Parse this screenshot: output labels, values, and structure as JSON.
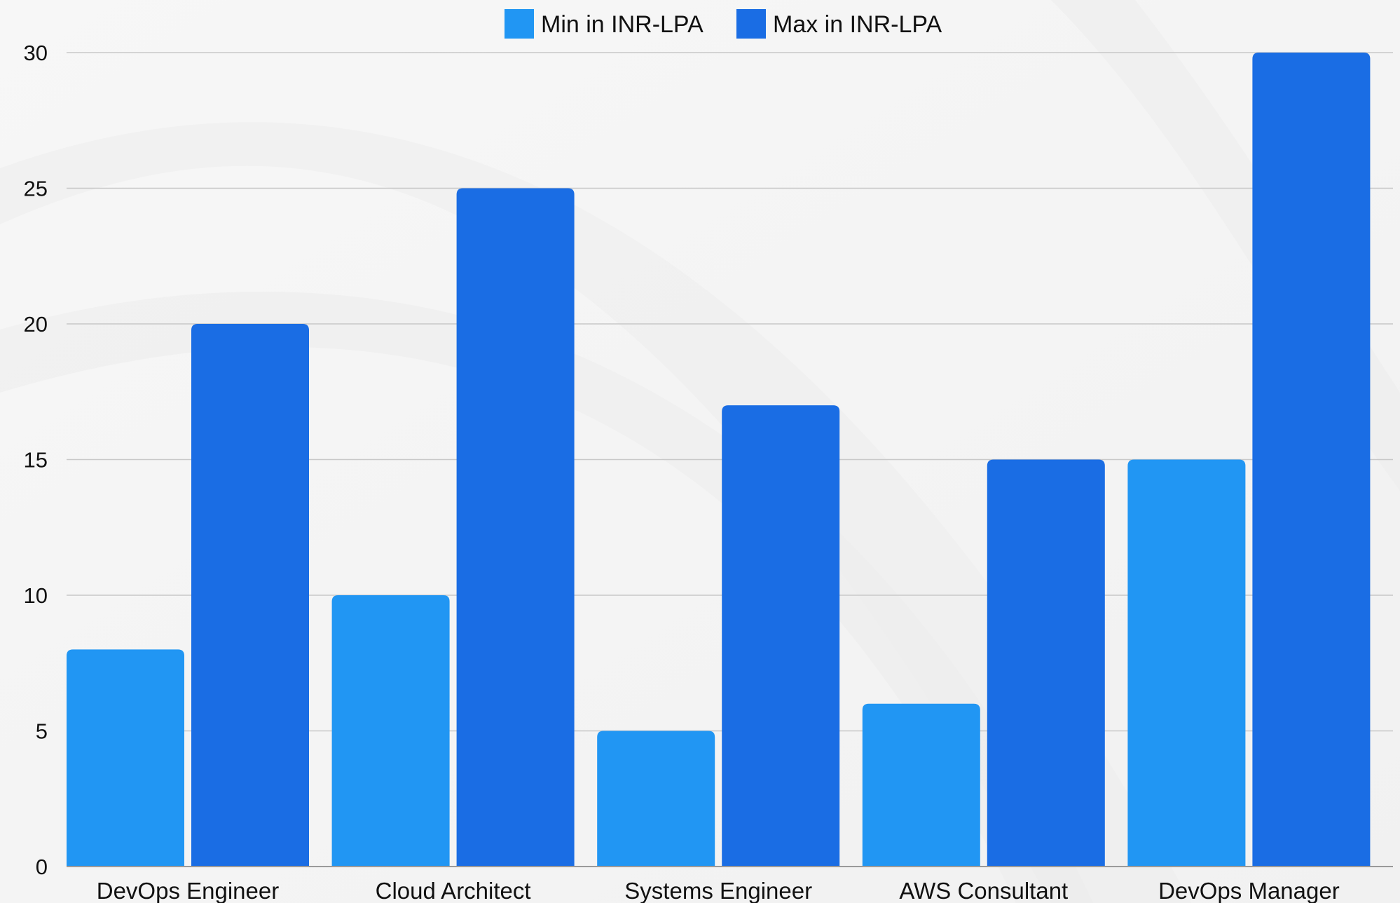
{
  "chart_data": {
    "type": "bar",
    "categories": [
      "DevOps Engineer",
      "Cloud Architect",
      "Systems Engineer",
      "AWS Consultant",
      "DevOps Manager"
    ],
    "series": [
      {
        "name": "Min in INR-LPA",
        "color": "#2196f3",
        "values": [
          8,
          10,
          5,
          6,
          15
        ]
      },
      {
        "name": "Max in INR-LPA",
        "color": "#1a6de4",
        "values": [
          20,
          25,
          17,
          15,
          30
        ]
      }
    ],
    "yticks": [
      0,
      5,
      10,
      15,
      20,
      25,
      30
    ],
    "ylim": [
      0,
      30
    ],
    "grid": true,
    "legend_position": "top-center"
  }
}
